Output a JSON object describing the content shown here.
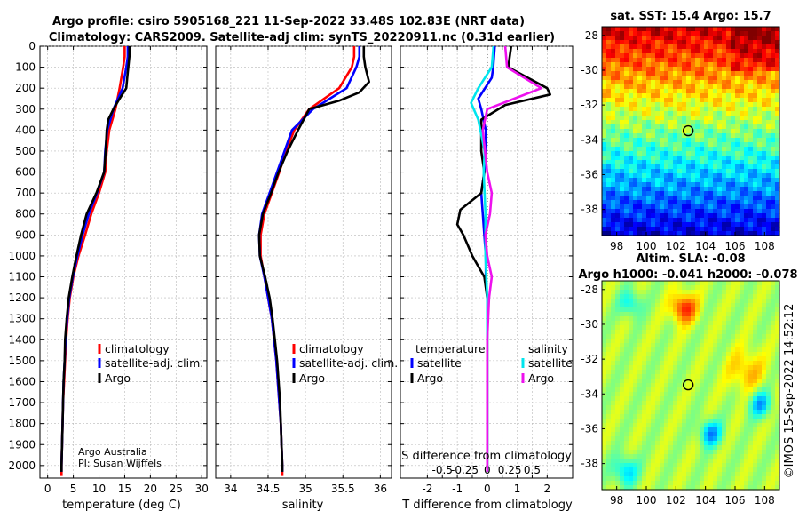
{
  "title_line1": "Argo profile: csiro 5905168_221 11-Sep-2022 33.48S 102.83E (NRT data)",
  "title_line2": "Climatology: CARS2009. Satellite-adj clim: synTS_20220911.nc (0.31d earlier)",
  "credit_line1": "Argo Australia",
  "credit_line2": "PI: Susan Wijffels",
  "footer_right": "©IMOS 15-Sep-2022 14:52:12",
  "colors": {
    "climatology": "#ff0000",
    "satellite": "#0000ff",
    "argo": "#000000",
    "sat_salinity": "#00e5ee",
    "argo_salinity": "#ee11ee"
  },
  "chart_data": [
    {
      "type": "line",
      "id": "temperature",
      "xlabel": "temperature (deg C)",
      "xlim": [
        -1.5,
        31
      ],
      "xticks": [
        0,
        5,
        10,
        15,
        20,
        25,
        30
      ],
      "ylim": [
        2060,
        0
      ],
      "yticks": [
        0,
        100,
        200,
        300,
        400,
        500,
        600,
        700,
        800,
        900,
        1000,
        1100,
        1200,
        1300,
        1400,
        1500,
        1600,
        1700,
        1800,
        1900,
        2000
      ],
      "legend": [
        "climatology",
        "satellite-adj. clim.",
        "Argo"
      ],
      "series": [
        {
          "name": "climatology",
          "color": "#ff0000",
          "points": [
            [
              15.0,
              0
            ],
            [
              15.0,
              50
            ],
            [
              14.7,
              100
            ],
            [
              14.0,
              200
            ],
            [
              13.2,
              300
            ],
            [
              12.0,
              400
            ],
            [
              11.5,
              500
            ],
            [
              11.2,
              600
            ],
            [
              10.0,
              700
            ],
            [
              8.5,
              800
            ],
            [
              7.3,
              900
            ],
            [
              6.0,
              1000
            ],
            [
              5.0,
              1100
            ],
            [
              4.3,
              1200
            ],
            [
              3.9,
              1300
            ],
            [
              3.6,
              1400
            ],
            [
              3.4,
              1500
            ],
            [
              3.2,
              1600
            ],
            [
              3.0,
              1700
            ],
            [
              2.9,
              1800
            ],
            [
              2.8,
              1900
            ],
            [
              2.7,
              2000
            ],
            [
              2.7,
              2050
            ]
          ]
        },
        {
          "name": "satellite-adj. clim.",
          "color": "#0000ff",
          "points": [
            [
              15.6,
              0
            ],
            [
              15.6,
              50
            ],
            [
              15.3,
              100
            ],
            [
              14.6,
              200
            ],
            [
              12.8,
              300
            ],
            [
              11.6,
              400
            ],
            [
              11.2,
              500
            ],
            [
              11.0,
              600
            ],
            [
              9.6,
              700
            ],
            [
              8.0,
              800
            ],
            [
              6.8,
              900
            ],
            [
              5.8,
              1000
            ],
            [
              4.9,
              1100
            ],
            [
              4.2,
              1200
            ],
            [
              3.8,
              1300
            ],
            [
              3.5,
              1400
            ],
            [
              3.3,
              1500
            ],
            [
              3.1,
              1600
            ],
            [
              3.0,
              1700
            ],
            [
              2.9,
              1800
            ],
            [
              2.8,
              1900
            ],
            [
              2.7,
              2000
            ],
            [
              2.7,
              2030
            ]
          ]
        },
        {
          "name": "Argo",
          "color": "#000000",
          "points": [
            [
              15.9,
              0
            ],
            [
              15.9,
              50
            ],
            [
              15.7,
              100
            ],
            [
              15.5,
              150
            ],
            [
              15.3,
              200
            ],
            [
              14.0,
              250
            ],
            [
              12.8,
              300
            ],
            [
              11.8,
              350
            ],
            [
              11.5,
              400
            ],
            [
              11.3,
              500
            ],
            [
              11.0,
              600
            ],
            [
              9.5,
              700
            ],
            [
              7.6,
              800
            ],
            [
              6.5,
              900
            ],
            [
              5.6,
              1000
            ],
            [
              4.8,
              1100
            ],
            [
              4.1,
              1200
            ],
            [
              3.7,
              1300
            ],
            [
              3.4,
              1400
            ],
            [
              3.3,
              1500
            ],
            [
              3.1,
              1600
            ],
            [
              3.0,
              1700
            ],
            [
              2.9,
              1800
            ],
            [
              2.8,
              1900
            ],
            [
              2.7,
              2000
            ],
            [
              2.7,
              2030
            ]
          ]
        }
      ]
    },
    {
      "type": "line",
      "id": "salinity",
      "xlabel": "salinity",
      "xlim": [
        33.8,
        36.15
      ],
      "xticks": [
        34,
        34.5,
        35,
        35.5,
        36
      ],
      "ylim": [
        2060,
        0
      ],
      "legend": [
        "climatology",
        "satellite-adj. clim.",
        "Argo"
      ],
      "series": [
        {
          "name": "climatology",
          "color": "#ff0000",
          "points": [
            [
              35.65,
              0
            ],
            [
              35.65,
              50
            ],
            [
              35.62,
              100
            ],
            [
              35.45,
              200
            ],
            [
              35.05,
              300
            ],
            [
              34.85,
              400
            ],
            [
              34.74,
              500
            ],
            [
              34.65,
              600
            ],
            [
              34.55,
              700
            ],
            [
              34.45,
              800
            ],
            [
              34.4,
              900
            ],
            [
              34.4,
              1000
            ],
            [
              34.45,
              1100
            ],
            [
              34.5,
              1200
            ],
            [
              34.55,
              1300
            ],
            [
              34.58,
              1400
            ],
            [
              34.61,
              1500
            ],
            [
              34.63,
              1600
            ],
            [
              34.65,
              1700
            ],
            [
              34.67,
              1800
            ],
            [
              34.68,
              1900
            ],
            [
              34.69,
              2000
            ],
            [
              34.69,
              2050
            ]
          ]
        },
        {
          "name": "satellite-adj. clim.",
          "color": "#0000ff",
          "points": [
            [
              35.72,
              0
            ],
            [
              35.72,
              50
            ],
            [
              35.68,
              100
            ],
            [
              35.55,
              200
            ],
            [
              35.1,
              300
            ],
            [
              34.82,
              400
            ],
            [
              34.72,
              500
            ],
            [
              34.62,
              600
            ],
            [
              34.52,
              700
            ],
            [
              34.42,
              800
            ],
            [
              34.38,
              900
            ],
            [
              34.39,
              1000
            ],
            [
              34.45,
              1100
            ],
            [
              34.5,
              1200
            ],
            [
              34.55,
              1300
            ],
            [
              34.58,
              1400
            ],
            [
              34.61,
              1500
            ],
            [
              34.63,
              1600
            ],
            [
              34.65,
              1700
            ],
            [
              34.67,
              1800
            ],
            [
              34.68,
              1900
            ],
            [
              34.69,
              2000
            ],
            [
              34.69,
              2030
            ]
          ]
        },
        {
          "name": "Argo",
          "color": "#000000",
          "points": [
            [
              35.78,
              0
            ],
            [
              35.78,
              50
            ],
            [
              35.8,
              100
            ],
            [
              35.85,
              170
            ],
            [
              35.72,
              220
            ],
            [
              35.45,
              260
            ],
            [
              35.05,
              300
            ],
            [
              34.9,
              400
            ],
            [
              34.76,
              500
            ],
            [
              34.64,
              600
            ],
            [
              34.54,
              700
            ],
            [
              34.43,
              800
            ],
            [
              34.38,
              900
            ],
            [
              34.39,
              1000
            ],
            [
              34.46,
              1100
            ],
            [
              34.52,
              1200
            ],
            [
              34.56,
              1300
            ],
            [
              34.59,
              1400
            ],
            [
              34.62,
              1500
            ],
            [
              34.64,
              1600
            ],
            [
              34.66,
              1700
            ],
            [
              34.67,
              1800
            ],
            [
              34.68,
              1900
            ],
            [
              34.69,
              2000
            ],
            [
              34.69,
              2030
            ]
          ]
        }
      ]
    },
    {
      "type": "line",
      "id": "difference",
      "xlabel": "T difference from climatology",
      "xlabel_top": "S difference from climatology",
      "xlim": [
        -2.9,
        2.85
      ],
      "xticks": [
        -2,
        -1.5,
        -1,
        -0.5,
        0,
        0.5,
        1,
        1.5,
        2
      ],
      "xtick_labels": [
        "-2",
        "",
        "-1",
        "",
        "0",
        "",
        "1",
        "",
        "2"
      ],
      "s_xticks": [
        -0.5,
        -0.25,
        0,
        0.25,
        0.5
      ],
      "s_xtick_labels": [
        "-0.5",
        "-0.25",
        "0",
        "0.25",
        "0.5"
      ],
      "ylim": [
        2060,
        0
      ],
      "legend_temperature_title": "temperature",
      "legend_salinity_title": "salinity",
      "legend_temperature": [
        "satellite",
        "Argo"
      ],
      "legend_salinity": [
        "satellite",
        "Argo"
      ],
      "series": [
        {
          "name": "T satellite",
          "color": "#0000ff",
          "points": [
            [
              0.25,
              0
            ],
            [
              0.2,
              100
            ],
            [
              0.15,
              150
            ],
            [
              -0.3,
              250
            ],
            [
              -0.2,
              300
            ],
            [
              -0.05,
              400
            ],
            [
              -0.05,
              500
            ],
            [
              -0.1,
              600
            ],
            [
              -0.2,
              700
            ],
            [
              -0.15,
              800
            ],
            [
              -0.1,
              900
            ],
            [
              -0.05,
              1000
            ],
            [
              -0.05,
              1100
            ],
            [
              0.0,
              1200
            ],
            [
              0.0,
              1300
            ],
            [
              0.0,
              1400
            ],
            [
              0.0,
              1500
            ],
            [
              0.0,
              1600
            ],
            [
              0.0,
              1700
            ],
            [
              0.0,
              1800
            ],
            [
              0.0,
              1900
            ],
            [
              0.0,
              2000
            ],
            [
              0.0,
              2030
            ]
          ]
        },
        {
          "name": "T Argo",
          "color": "#000000",
          "points": [
            [
              0.8,
              0
            ],
            [
              0.7,
              100
            ],
            [
              2.0,
              200
            ],
            [
              2.1,
              230
            ],
            [
              0.6,
              280
            ],
            [
              -0.2,
              350
            ],
            [
              -0.2,
              500
            ],
            [
              -0.1,
              600
            ],
            [
              -0.2,
              700
            ],
            [
              -0.9,
              780
            ],
            [
              -1.0,
              850
            ],
            [
              -0.8,
              900
            ],
            [
              -0.5,
              1000
            ],
            [
              -0.3,
              1050
            ],
            [
              -0.1,
              1100
            ],
            [
              0.0,
              1200
            ],
            [
              0.0,
              1300
            ],
            [
              0.0,
              1500
            ],
            [
              0.0,
              1700
            ],
            [
              0.0,
              1900
            ],
            [
              0.0,
              2030
            ]
          ]
        },
        {
          "name": "S satellite",
          "color": "#00e5ee",
          "points": [
            [
              0.07,
              0
            ],
            [
              0.05,
              100
            ],
            [
              -0.1,
              200
            ],
            [
              -0.18,
              270
            ],
            [
              -0.1,
              350
            ],
            [
              -0.03,
              500
            ],
            [
              -0.04,
              600
            ],
            [
              -0.03,
              700
            ],
            [
              -0.02,
              800
            ],
            [
              -0.02,
              1000
            ],
            [
              0.0,
              1200
            ],
            [
              0.0,
              1500
            ],
            [
              0.0,
              1800
            ],
            [
              0.0,
              2030
            ]
          ]
        },
        {
          "name": "S Argo",
          "color": "#ee11ee",
          "points": [
            [
              0.2,
              0
            ],
            [
              0.22,
              100
            ],
            [
              0.6,
              200
            ],
            [
              0.3,
              250
            ],
            [
              0.0,
              300
            ],
            [
              -0.05,
              400
            ],
            [
              0.0,
              600
            ],
            [
              0.05,
              700
            ],
            [
              0.03,
              800
            ],
            [
              -0.02,
              900
            ],
            [
              0.0,
              1000
            ],
            [
              0.05,
              1100
            ],
            [
              0.02,
              1200
            ],
            [
              0.0,
              1400
            ],
            [
              0.0,
              1600
            ],
            [
              0.0,
              1800
            ],
            [
              0.0,
              2030
            ]
          ]
        }
      ]
    },
    {
      "type": "heatmap",
      "id": "sst_map",
      "title": "sat. SST: 15.4 Argo: 15.7",
      "xlim": [
        97,
        109
      ],
      "ylim": [
        -39.5,
        -27.5
      ],
      "xticks": [
        98,
        100,
        102,
        104,
        106,
        108
      ],
      "yticks": [
        -28,
        -30,
        -32,
        -34,
        -36,
        -38
      ],
      "marker": {
        "lon": 102.83,
        "lat": -33.48
      }
    },
    {
      "type": "heatmap",
      "id": "sla_map",
      "title": "Altim. SLA: -0.08",
      "subtitle": "Argo h1000: -0.041 h2000: -0.078",
      "xlim": [
        97,
        109
      ],
      "ylim": [
        -39.5,
        -27.5
      ],
      "xticks": [
        98,
        100,
        102,
        104,
        106,
        108
      ],
      "yticks": [
        -28,
        -30,
        -32,
        -34,
        -36,
        -38
      ],
      "marker": {
        "lon": 102.83,
        "lat": -33.48
      }
    }
  ]
}
